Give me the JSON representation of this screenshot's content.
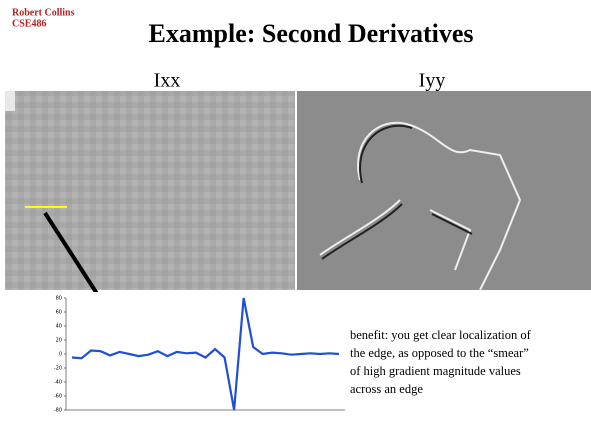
{
  "header": {
    "author": "Robert Collins",
    "course": "CSE486"
  },
  "title": "Example: Second Derivatives",
  "images": [
    {
      "label": "Ixx"
    },
    {
      "label": "Iyy"
    }
  ],
  "annotation": [
    "benefit: you get clear localization of",
    "the edge, as opposed to the “smear”",
    "of high gradient magnitude values",
    "across an edge"
  ],
  "chart_data": {
    "type": "line",
    "color": "#1f4fd6",
    "values": [
      -5,
      -6,
      5,
      4,
      -2,
      3,
      0,
      -3,
      -1,
      4,
      -3,
      3,
      1,
      2,
      -5,
      7,
      -5,
      -80,
      80,
      10,
      0,
      2,
      1,
      -1,
      0,
      1,
      0,
      1,
      0
    ],
    "ylim": [
      -80,
      80
    ],
    "yticks": [
      80,
      60,
      40,
      20,
      0,
      -20,
      -40,
      -60,
      -80
    ]
  }
}
